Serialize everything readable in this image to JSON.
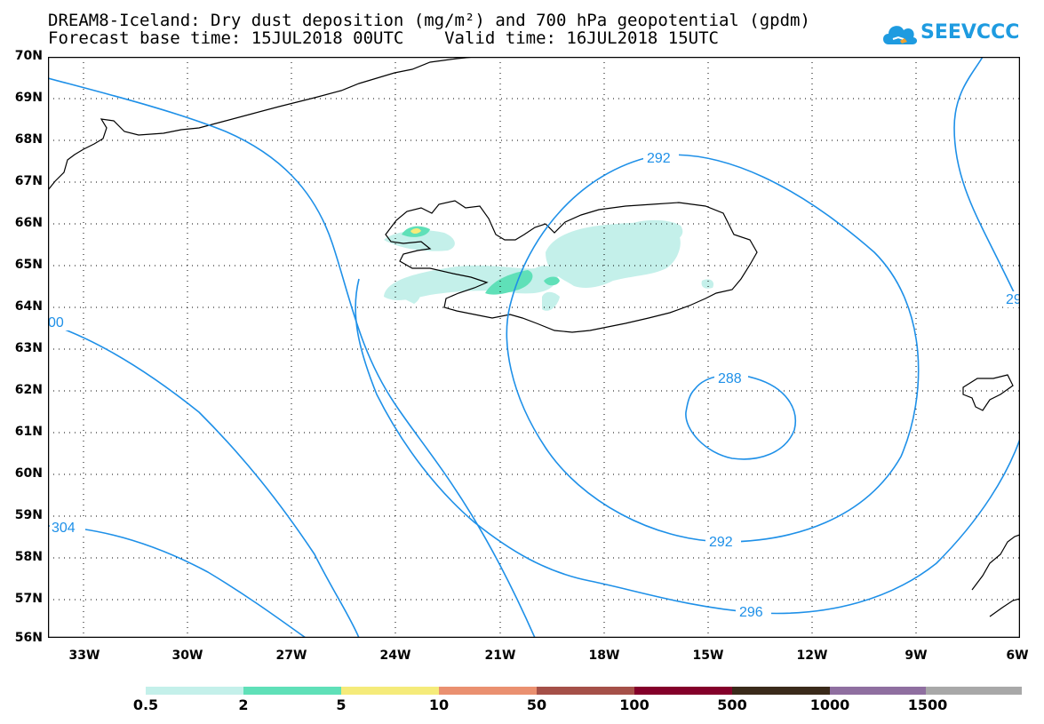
{
  "header": {
    "title_line1": "DREAM8-Iceland: Dry dust deposition (mg/m²) and 700 hPa geopotential (gpdm)",
    "title_line2": "Forecast base time: 15JUL2018 00UTC    Valid time: 16JUL2018 15UTC"
  },
  "logo": {
    "text": "SEEVCCC",
    "icon": "cloud-icon",
    "color": "#1e9be0"
  },
  "map": {
    "lat_labels": [
      "70N",
      "69N",
      "68N",
      "67N",
      "66N",
      "65N",
      "64N",
      "63N",
      "62N",
      "61N",
      "60N",
      "59N",
      "58N",
      "57N",
      "56N"
    ],
    "lon_labels": [
      "33W",
      "30W",
      "27W",
      "24W",
      "21W",
      "18W",
      "15W",
      "12W",
      "9W",
      "6W"
    ],
    "contour_color": "#1e90e8",
    "contour_labels": [
      "292",
      "288",
      "292",
      "296",
      "304",
      "00",
      "29"
    ]
  },
  "legend": {
    "labels": [
      "0.5",
      "2",
      "5",
      "10",
      "50",
      "100",
      "500",
      "1000",
      "1500"
    ],
    "colors": [
      "#c4f0ea",
      "#5fe0b8",
      "#f5eb7a",
      "#ea9070",
      "#a55048",
      "#84002a",
      "#3a2a1a",
      "#8f6fa0",
      "#a8a8a8"
    ]
  }
}
